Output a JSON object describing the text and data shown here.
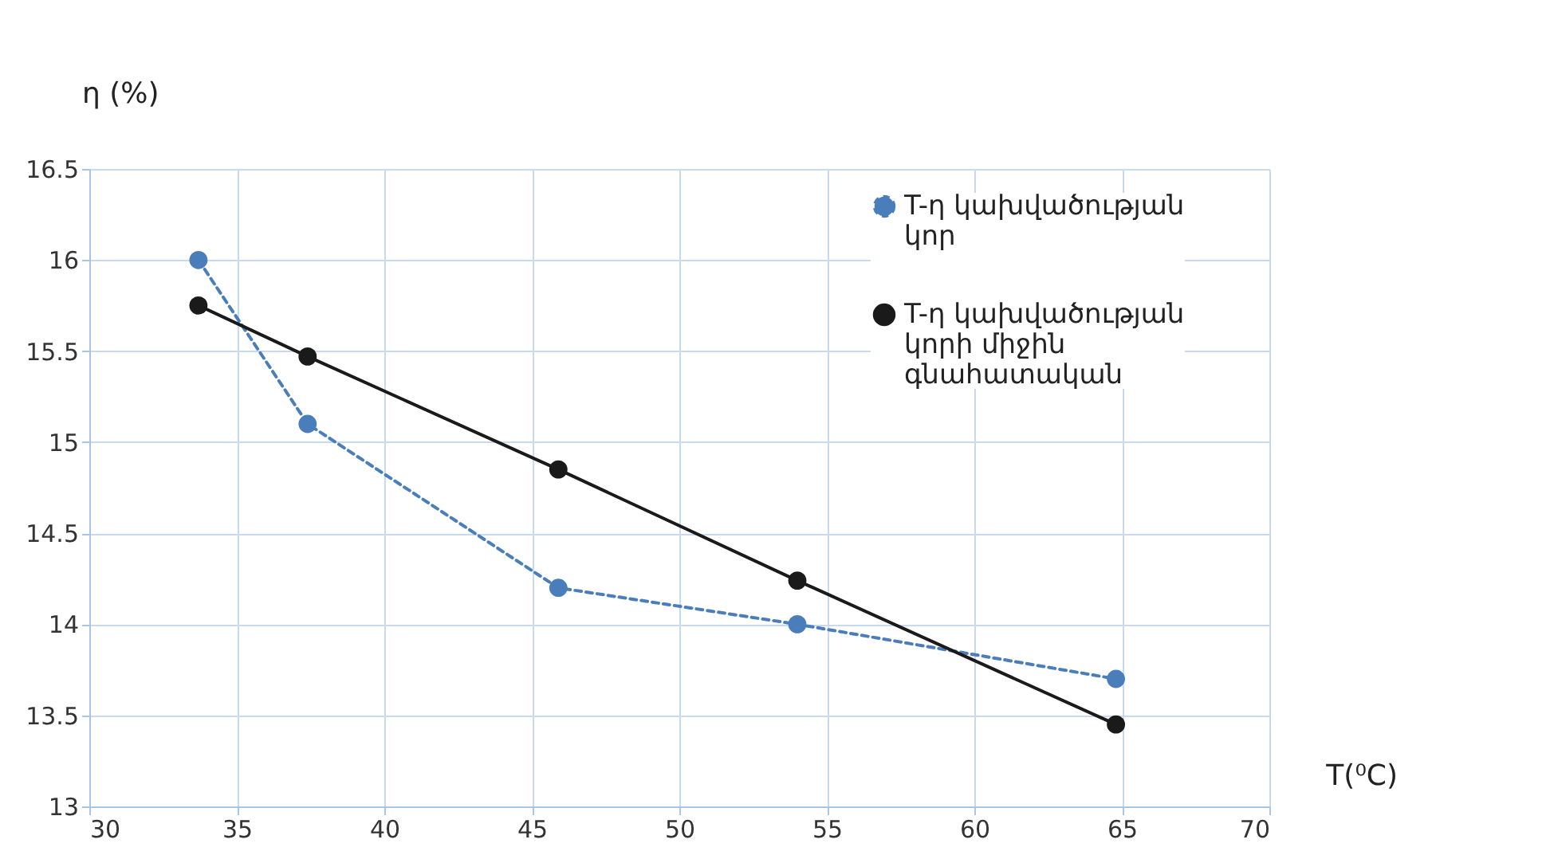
{
  "chart_data": {
    "type": "line",
    "xlabel": "T(⁰C)",
    "ylabel": "η (%)",
    "x": [
      33.7,
      37.4,
      45.9,
      54.0,
      64.8
    ],
    "series": [
      {
        "name": "T-η կախվածության կոր",
        "color": "#4a7ebb",
        "values": [
          16.0,
          15.1,
          14.2,
          14.0,
          13.7
        ],
        "line_style": "dashed",
        "marker": "circle"
      },
      {
        "name": "T-η կախվածության կորի միջին գնահատական",
        "color": "#1a1a1a",
        "values": [
          15.75,
          15.47,
          14.85,
          14.24,
          13.45
        ],
        "line_style": "solid",
        "marker": "circle"
      }
    ],
    "xlim": [
      30,
      70
    ],
    "xticks": [
      30,
      35,
      40,
      45,
      50,
      55,
      60,
      65,
      70
    ],
    "ylim": [
      13,
      16.5
    ],
    "yticks": [
      13,
      13.5,
      14,
      14.5,
      15,
      15.5,
      16,
      16.5
    ],
    "grid": true,
    "legend": "top right"
  }
}
